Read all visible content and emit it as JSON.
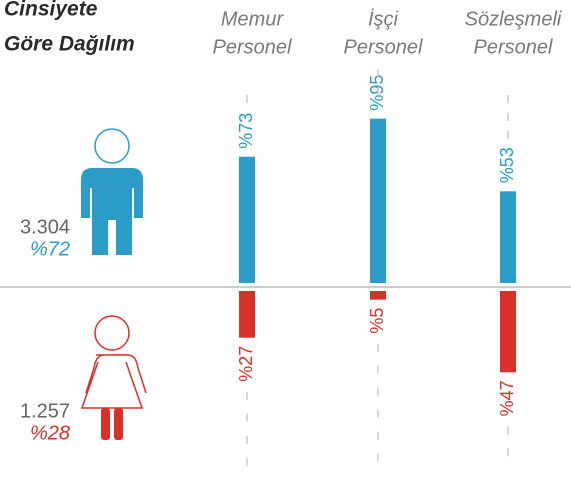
{
  "chart_data": {
    "type": "diverging-bar",
    "title": [
      "Cinsiyete",
      "Göre Dağılım"
    ],
    "categories": [
      [
        "Memur",
        "Personel"
      ],
      [
        "İşçi",
        "Personel"
      ],
      [
        "Sözleşmeli",
        "Personel"
      ]
    ],
    "ylim": [
      0,
      100
    ],
    "series": [
      {
        "color": "#2b9cc7",
        "direction": "up",
        "values": [
          73,
          95,
          53
        ],
        "value_labels": [
          "%73",
          "%95",
          "%53"
        ],
        "count": {
          "value": 3304,
          "label": "3.304"
        },
        "share": {
          "value": 72,
          "label": "%72"
        }
      },
      {
        "color": "#d9302a",
        "direction": "down",
        "values": [
          27,
          5,
          47
        ],
        "value_labels": [
          "%27",
          "%5",
          "%47"
        ],
        "count": {
          "value": 1257,
          "label": "1.257"
        },
        "share": {
          "value": 28,
          "label": "%28"
        }
      }
    ]
  }
}
